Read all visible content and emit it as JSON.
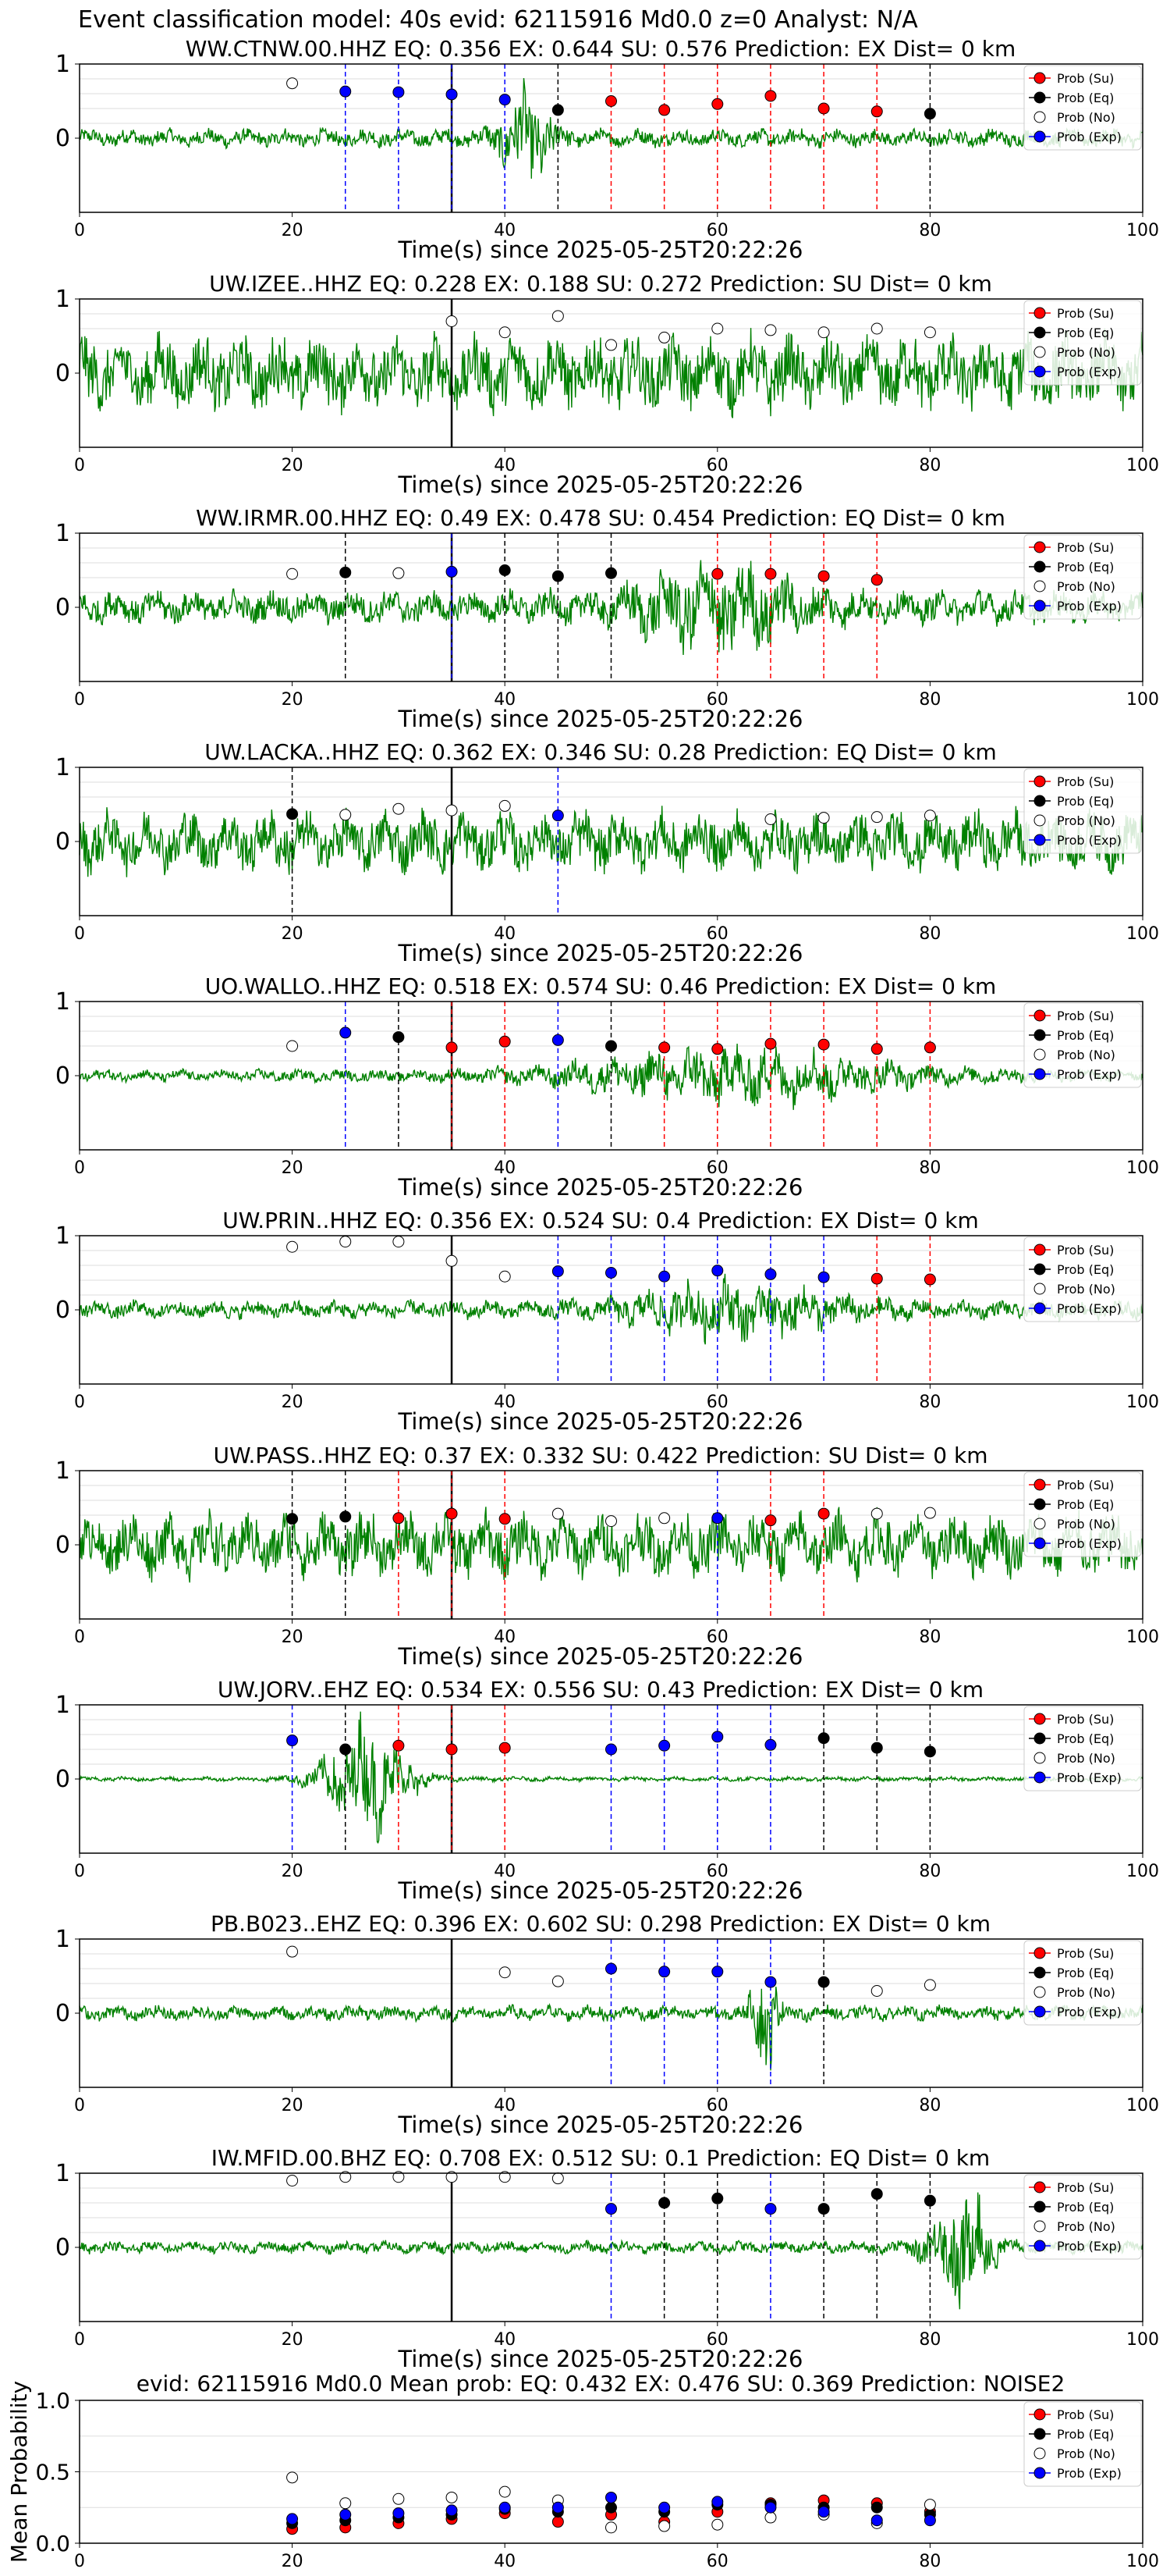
{
  "figure": {
    "suptitle": "Event classification model: 40s evid: 62115916 Md0.0 z=0 Analyst: N/A"
  },
  "legend": [
    {
      "label": "Prob (Su)",
      "color": "#ff0000",
      "key": "su"
    },
    {
      "label": "Prob (Eq)",
      "color": "#000000",
      "key": "eq"
    },
    {
      "label": "Prob (No)",
      "color": "#ffffff",
      "key": "no"
    },
    {
      "label": "Prob (Exp)",
      "color": "#0000ff",
      "key": "ex"
    }
  ],
  "colors": {
    "waveform": "#008000",
    "su": "#ff0000",
    "eq": "#000000",
    "no": "#ffffff",
    "ex": "#0000ff",
    "grid": "#dddddd",
    "window_line": "#000000"
  },
  "chart_data": [
    {
      "type": "line",
      "title": "WW.CTNW.00.HHZ   EQ: 0.356  EX: 0.644  SU: 0.576   Prediction: EX    Dist= 0 km",
      "xlabel": "Time(s) since 2025-05-25T20:22:26",
      "ylabel": "",
      "xlim": [
        0,
        100
      ],
      "ylim": [
        -1,
        1
      ],
      "x_ticks": [
        0,
        20,
        40,
        60,
        80,
        100
      ],
      "y_ticks": [
        0,
        1
      ],
      "window_start": 35,
      "waveform": {
        "amplitude": 0.12,
        "burst_at": 42,
        "burst_amp": 0.55,
        "burst_width": 2.5
      },
      "points": [
        {
          "x": 20,
          "y": 0.74,
          "class": "no"
        },
        {
          "x": 25,
          "y": 0.63,
          "class": "ex"
        },
        {
          "x": 30,
          "y": 0.62,
          "class": "ex"
        },
        {
          "x": 35,
          "y": 0.59,
          "class": "ex"
        },
        {
          "x": 40,
          "y": 0.52,
          "class": "ex"
        },
        {
          "x": 45,
          "y": 0.38,
          "class": "eq"
        },
        {
          "x": 50,
          "y": 0.5,
          "class": "su"
        },
        {
          "x": 55,
          "y": 0.38,
          "class": "su"
        },
        {
          "x": 60,
          "y": 0.46,
          "class": "su"
        },
        {
          "x": 65,
          "y": 0.57,
          "class": "su"
        },
        {
          "x": 70,
          "y": 0.4,
          "class": "su"
        },
        {
          "x": 75,
          "y": 0.36,
          "class": "su"
        },
        {
          "x": 80,
          "y": 0.33,
          "class": "eq"
        }
      ]
    },
    {
      "type": "line",
      "title": "UW.IZEE..HHZ   EQ: 0.228  EX: 0.188  SU: 0.272   Prediction: SU    Dist= 0 km",
      "xlabel": "Time(s) since 2025-05-25T20:22:26",
      "ylabel": "",
      "xlim": [
        0,
        100
      ],
      "ylim": [
        -1,
        1
      ],
      "x_ticks": [
        0,
        20,
        40,
        60,
        80,
        100
      ],
      "y_ticks": [
        0,
        1
      ],
      "window_start": 35,
      "waveform": {
        "amplitude": 0.5,
        "burst_at": 0,
        "burst_amp": 0,
        "burst_width": 1
      },
      "points": [
        {
          "x": 35,
          "y": 0.7,
          "class": "no"
        },
        {
          "x": 40,
          "y": 0.55,
          "class": "no"
        },
        {
          "x": 45,
          "y": 0.77,
          "class": "no"
        },
        {
          "x": 50,
          "y": 0.38,
          "class": "no"
        },
        {
          "x": 55,
          "y": 0.48,
          "class": "no"
        },
        {
          "x": 60,
          "y": 0.6,
          "class": "no"
        },
        {
          "x": 65,
          "y": 0.58,
          "class": "no"
        },
        {
          "x": 70,
          "y": 0.55,
          "class": "no"
        },
        {
          "x": 75,
          "y": 0.6,
          "class": "no"
        },
        {
          "x": 80,
          "y": 0.55,
          "class": "no"
        }
      ]
    },
    {
      "type": "line",
      "title": "WW.IRMR.00.HHZ   EQ: 0.49  EX: 0.478  SU: 0.454   Prediction: EQ    Dist= 0 km",
      "xlabel": "Time(s) since 2025-05-25T20:22:26",
      "ylabel": "",
      "xlim": [
        0,
        100
      ],
      "ylim": [
        -1,
        1
      ],
      "x_ticks": [
        0,
        20,
        40,
        60,
        80,
        100
      ],
      "y_ticks": [
        0,
        1
      ],
      "window_start": 35,
      "waveform": {
        "amplitude": 0.22,
        "burst_at": 60,
        "burst_amp": 0.45,
        "burst_width": 8
      },
      "points": [
        {
          "x": 20,
          "y": 0.45,
          "class": "no"
        },
        {
          "x": 25,
          "y": 0.47,
          "class": "eq"
        },
        {
          "x": 30,
          "y": 0.46,
          "class": "no"
        },
        {
          "x": 35,
          "y": 0.48,
          "class": "ex"
        },
        {
          "x": 40,
          "y": 0.5,
          "class": "eq"
        },
        {
          "x": 45,
          "y": 0.42,
          "class": "eq"
        },
        {
          "x": 50,
          "y": 0.46,
          "class": "eq"
        },
        {
          "x": 60,
          "y": 0.45,
          "class": "su"
        },
        {
          "x": 65,
          "y": 0.45,
          "class": "su"
        },
        {
          "x": 70,
          "y": 0.42,
          "class": "su"
        },
        {
          "x": 75,
          "y": 0.37,
          "class": "su"
        }
      ]
    },
    {
      "type": "line",
      "title": "UW.LACKA..HHZ   EQ: 0.362  EX: 0.346  SU: 0.28   Prediction: EQ    Dist= 0 km",
      "xlabel": "Time(s) since 2025-05-25T20:22:26",
      "ylabel": "",
      "xlim": [
        0,
        100
      ],
      "ylim": [
        -1,
        1
      ],
      "x_ticks": [
        0,
        20,
        40,
        60,
        80,
        100
      ],
      "y_ticks": [
        0,
        1
      ],
      "window_start": 35,
      "waveform": {
        "amplitude": 0.4,
        "burst_at": 0,
        "burst_amp": 0,
        "burst_width": 1
      },
      "points": [
        {
          "x": 20,
          "y": 0.37,
          "class": "eq"
        },
        {
          "x": 25,
          "y": 0.36,
          "class": "no"
        },
        {
          "x": 30,
          "y": 0.44,
          "class": "no"
        },
        {
          "x": 35,
          "y": 0.42,
          "class": "no"
        },
        {
          "x": 40,
          "y": 0.48,
          "class": "no"
        },
        {
          "x": 45,
          "y": 0.35,
          "class": "ex"
        },
        {
          "x": 65,
          "y": 0.3,
          "class": "no"
        },
        {
          "x": 70,
          "y": 0.32,
          "class": "no"
        },
        {
          "x": 75,
          "y": 0.33,
          "class": "no"
        },
        {
          "x": 80,
          "y": 0.35,
          "class": "no"
        }
      ]
    },
    {
      "type": "line",
      "title": "UO.WALLO..HHZ   EQ: 0.518  EX: 0.574  SU: 0.46   Prediction: EX    Dist= 0 km",
      "xlabel": "Time(s) since 2025-05-25T20:22:26",
      "ylabel": "",
      "xlim": [
        0,
        100
      ],
      "ylim": [
        -1,
        1
      ],
      "x_ticks": [
        0,
        20,
        40,
        60,
        80,
        100
      ],
      "y_ticks": [
        0,
        1
      ],
      "window_start": 35,
      "waveform": {
        "amplitude": 0.08,
        "burst_at": 62,
        "burst_amp": 0.35,
        "burst_width": 15
      },
      "points": [
        {
          "x": 20,
          "y": 0.4,
          "class": "no"
        },
        {
          "x": 25,
          "y": 0.58,
          "class": "ex"
        },
        {
          "x": 30,
          "y": 0.52,
          "class": "eq"
        },
        {
          "x": 35,
          "y": 0.38,
          "class": "su"
        },
        {
          "x": 40,
          "y": 0.46,
          "class": "su"
        },
        {
          "x": 45,
          "y": 0.48,
          "class": "ex"
        },
        {
          "x": 50,
          "y": 0.4,
          "class": "eq"
        },
        {
          "x": 55,
          "y": 0.38,
          "class": "su"
        },
        {
          "x": 60,
          "y": 0.36,
          "class": "su"
        },
        {
          "x": 65,
          "y": 0.43,
          "class": "su"
        },
        {
          "x": 70,
          "y": 0.42,
          "class": "su"
        },
        {
          "x": 75,
          "y": 0.36,
          "class": "su"
        },
        {
          "x": 80,
          "y": 0.38,
          "class": "su"
        }
      ]
    },
    {
      "type": "line",
      "title": "UW.PRIN..HHZ   EQ: 0.356  EX: 0.524  SU: 0.4   Prediction: EX    Dist= 0 km",
      "xlabel": "Time(s) since 2025-05-25T20:22:26",
      "ylabel": "",
      "xlim": [
        0,
        100
      ],
      "ylim": [
        -1,
        1
      ],
      "x_ticks": [
        0,
        20,
        40,
        60,
        80,
        100
      ],
      "y_ticks": [
        0,
        1
      ],
      "window_start": 35,
      "waveform": {
        "amplitude": 0.12,
        "burst_at": 62,
        "burst_amp": 0.3,
        "burst_width": 10
      },
      "points": [
        {
          "x": 20,
          "y": 0.85,
          "class": "no"
        },
        {
          "x": 25,
          "y": 0.92,
          "class": "no"
        },
        {
          "x": 30,
          "y": 0.92,
          "class": "no"
        },
        {
          "x": 35,
          "y": 0.66,
          "class": "no"
        },
        {
          "x": 40,
          "y": 0.45,
          "class": "no"
        },
        {
          "x": 45,
          "y": 0.52,
          "class": "ex"
        },
        {
          "x": 50,
          "y": 0.5,
          "class": "ex"
        },
        {
          "x": 55,
          "y": 0.45,
          "class": "ex"
        },
        {
          "x": 60,
          "y": 0.53,
          "class": "ex"
        },
        {
          "x": 65,
          "y": 0.48,
          "class": "ex"
        },
        {
          "x": 70,
          "y": 0.44,
          "class": "ex"
        },
        {
          "x": 75,
          "y": 0.42,
          "class": "su"
        },
        {
          "x": 80,
          "y": 0.41,
          "class": "su"
        }
      ]
    },
    {
      "type": "line",
      "title": "UW.PASS..HHZ   EQ: 0.37  EX: 0.332  SU: 0.422   Prediction: SU    Dist= 0 km",
      "xlabel": "Time(s) since 2025-05-25T20:22:26",
      "ylabel": "",
      "xlim": [
        0,
        100
      ],
      "ylim": [
        -1,
        1
      ],
      "x_ticks": [
        0,
        20,
        40,
        60,
        80,
        100
      ],
      "y_ticks": [
        0,
        1
      ],
      "window_start": 35,
      "waveform": {
        "amplitude": 0.42,
        "burst_at": 0,
        "burst_amp": 0,
        "burst_width": 1
      },
      "points": [
        {
          "x": 20,
          "y": 0.35,
          "class": "eq"
        },
        {
          "x": 25,
          "y": 0.38,
          "class": "eq"
        },
        {
          "x": 30,
          "y": 0.36,
          "class": "su"
        },
        {
          "x": 35,
          "y": 0.42,
          "class": "su"
        },
        {
          "x": 40,
          "y": 0.35,
          "class": "su"
        },
        {
          "x": 45,
          "y": 0.42,
          "class": "no"
        },
        {
          "x": 50,
          "y": 0.32,
          "class": "no"
        },
        {
          "x": 55,
          "y": 0.36,
          "class": "no"
        },
        {
          "x": 60,
          "y": 0.36,
          "class": "ex"
        },
        {
          "x": 65,
          "y": 0.33,
          "class": "su"
        },
        {
          "x": 70,
          "y": 0.42,
          "class": "su"
        },
        {
          "x": 75,
          "y": 0.42,
          "class": "no"
        },
        {
          "x": 80,
          "y": 0.43,
          "class": "no"
        }
      ]
    },
    {
      "type": "line",
      "title": "UW.JORV..EHZ   EQ: 0.534  EX: 0.556  SU: 0.43   Prediction: EX    Dist= 0 km",
      "xlabel": "Time(s) since 2025-05-25T20:22:26",
      "ylabel": "",
      "xlim": [
        0,
        100
      ],
      "ylim": [
        -1,
        1
      ],
      "x_ticks": [
        0,
        20,
        40,
        60,
        80,
        100
      ],
      "y_ticks": [
        0,
        1
      ],
      "window_start": 35,
      "waveform": {
        "amplitude": 0.03,
        "burst_at": 27,
        "burst_amp": 0.75,
        "burst_width": 4
      },
      "points": [
        {
          "x": 20,
          "y": 0.52,
          "class": "ex"
        },
        {
          "x": 25,
          "y": 0.4,
          "class": "eq"
        },
        {
          "x": 30,
          "y": 0.45,
          "class": "su"
        },
        {
          "x": 35,
          "y": 0.4,
          "class": "su"
        },
        {
          "x": 40,
          "y": 0.42,
          "class": "su"
        },
        {
          "x": 50,
          "y": 0.4,
          "class": "ex"
        },
        {
          "x": 55,
          "y": 0.45,
          "class": "ex"
        },
        {
          "x": 60,
          "y": 0.57,
          "class": "ex"
        },
        {
          "x": 65,
          "y": 0.46,
          "class": "ex"
        },
        {
          "x": 70,
          "y": 0.55,
          "class": "eq"
        },
        {
          "x": 75,
          "y": 0.42,
          "class": "eq"
        },
        {
          "x": 80,
          "y": 0.37,
          "class": "eq"
        }
      ]
    },
    {
      "type": "line",
      "title": "PB.B023..EHZ   EQ: 0.396  EX: 0.602  SU: 0.298   Prediction: EX    Dist= 0 km",
      "xlabel": "Time(s) since 2025-05-25T20:22:26",
      "ylabel": "",
      "xlim": [
        0,
        100
      ],
      "ylim": [
        -1,
        1
      ],
      "x_ticks": [
        0,
        20,
        40,
        60,
        80,
        100
      ],
      "y_ticks": [
        0,
        1
      ],
      "window_start": 35,
      "waveform": {
        "amplitude": 0.1,
        "burst_at": 64.5,
        "burst_amp": 0.7,
        "burst_width": 1.2
      },
      "points": [
        {
          "x": 20,
          "y": 0.83,
          "class": "no"
        },
        {
          "x": 40,
          "y": 0.55,
          "class": "no"
        },
        {
          "x": 45,
          "y": 0.43,
          "class": "no"
        },
        {
          "x": 50,
          "y": 0.6,
          "class": "ex"
        },
        {
          "x": 55,
          "y": 0.56,
          "class": "ex"
        },
        {
          "x": 60,
          "y": 0.56,
          "class": "ex"
        },
        {
          "x": 65,
          "y": 0.42,
          "class": "ex"
        },
        {
          "x": 70,
          "y": 0.42,
          "class": "eq"
        },
        {
          "x": 75,
          "y": 0.3,
          "class": "no"
        },
        {
          "x": 80,
          "y": 0.38,
          "class": "no"
        }
      ]
    },
    {
      "type": "line",
      "title": "IW.MFID.00.BHZ   EQ: 0.708  EX: 0.512  SU: 0.1   Prediction: EQ    Dist= 0 km",
      "xlabel": "Time(s) since 2025-05-25T20:22:26",
      "ylabel": "",
      "xlim": [
        0,
        100
      ],
      "ylim": [
        -1,
        1
      ],
      "x_ticks": [
        0,
        20,
        40,
        60,
        80,
        100
      ],
      "y_ticks": [
        0,
        1
      ],
      "window_start": 35,
      "waveform": {
        "amplitude": 0.08,
        "burst_at": 83,
        "burst_amp": 0.75,
        "burst_width": 3
      },
      "points": [
        {
          "x": 20,
          "y": 0.9,
          "class": "no"
        },
        {
          "x": 25,
          "y": 0.95,
          "class": "no"
        },
        {
          "x": 30,
          "y": 0.95,
          "class": "no"
        },
        {
          "x": 35,
          "y": 0.95,
          "class": "no"
        },
        {
          "x": 40,
          "y": 0.95,
          "class": "no"
        },
        {
          "x": 45,
          "y": 0.93,
          "class": "no"
        },
        {
          "x": 50,
          "y": 0.52,
          "class": "ex"
        },
        {
          "x": 55,
          "y": 0.6,
          "class": "eq"
        },
        {
          "x": 60,
          "y": 0.66,
          "class": "eq"
        },
        {
          "x": 65,
          "y": 0.52,
          "class": "ex"
        },
        {
          "x": 70,
          "y": 0.52,
          "class": "eq"
        },
        {
          "x": 75,
          "y": 0.72,
          "class": "eq"
        },
        {
          "x": 80,
          "y": 0.63,
          "class": "eq"
        }
      ]
    },
    {
      "type": "scatter",
      "title": "evid: 62115916  Md0.0   Mean prob:   EQ: 0.432  EX: 0.476  SU: 0.369   Prediction: NOISE2",
      "xlabel": "",
      "ylabel": "Mean Probability",
      "xlim": [
        0,
        100
      ],
      "ylim": [
        0,
        1
      ],
      "x_ticks": [
        0,
        20,
        40,
        60,
        80,
        100
      ],
      "y_ticks": [
        0.0,
        0.5,
        1.0
      ],
      "y_tick_labels": [
        "0.0",
        "0.5",
        "1.0"
      ],
      "x": [
        20,
        25,
        30,
        35,
        40,
        45,
        50,
        55,
        60,
        65,
        70,
        75,
        80
      ],
      "series": [
        {
          "name": "Prob (Su)",
          "class": "su",
          "values": [
            0.1,
            0.11,
            0.14,
            0.17,
            0.21,
            0.15,
            0.2,
            0.15,
            0.22,
            0.28,
            0.3,
            0.28,
            0.22
          ]
        },
        {
          "name": "Prob (Eq)",
          "class": "eq",
          "values": [
            0.14,
            0.16,
            0.18,
            0.2,
            0.24,
            0.22,
            0.25,
            0.22,
            0.27,
            0.27,
            0.25,
            0.25,
            0.2
          ]
        },
        {
          "name": "Prob (No)",
          "class": "no",
          "values": [
            0.46,
            0.28,
            0.31,
            0.32,
            0.36,
            0.3,
            0.11,
            0.12,
            0.13,
            0.18,
            0.2,
            0.14,
            0.27
          ]
        },
        {
          "name": "Prob (Exp)",
          "class": "ex",
          "values": [
            0.17,
            0.2,
            0.21,
            0.23,
            0.25,
            0.25,
            0.32,
            0.25,
            0.29,
            0.25,
            0.22,
            0.16,
            0.16
          ]
        }
      ]
    }
  ]
}
